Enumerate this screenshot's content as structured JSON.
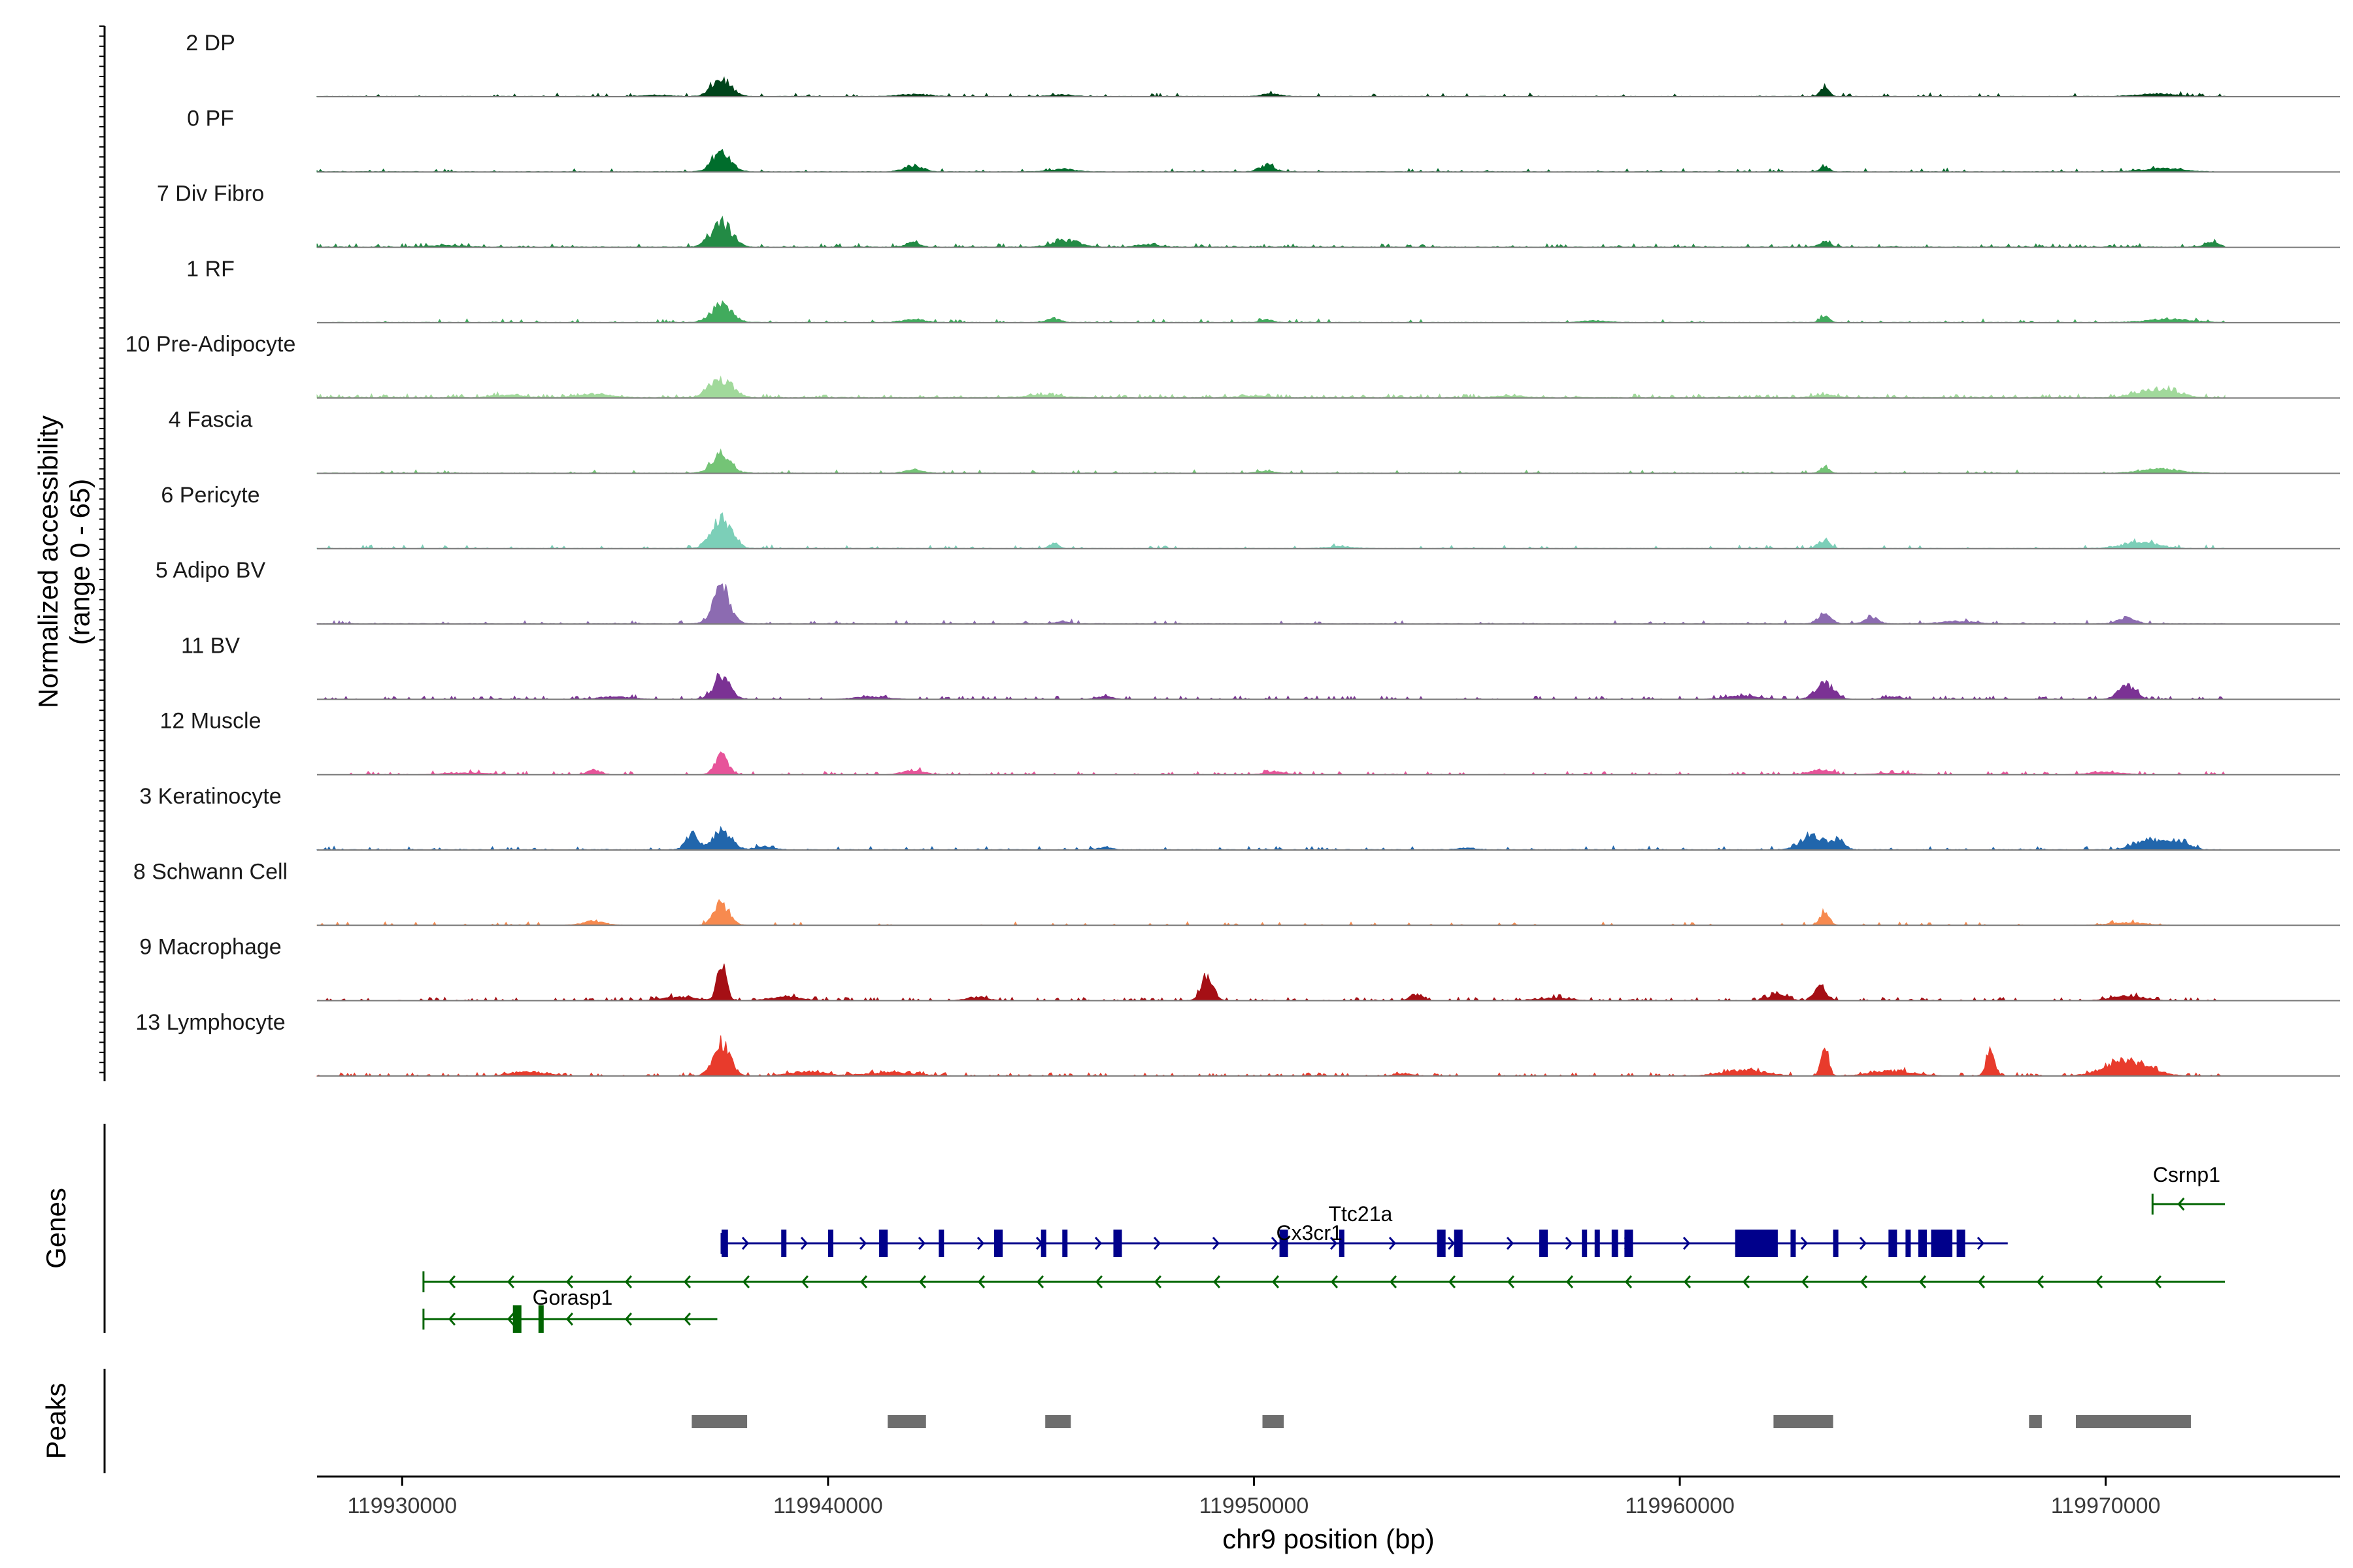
{
  "chart_data": {
    "type": "genome_track",
    "title": "",
    "xlabel": "chr9 position (bp)",
    "ylabel": "Normalized accessibility\n(range 0 - 65)",
    "xlim": [
      119928000,
      119975500
    ],
    "ylim": [
      0,
      65
    ],
    "x_ticks": [
      119930000,
      119940000,
      119950000,
      119960000,
      119970000
    ],
    "x_tick_labels": [
      "119930000",
      "119940000",
      "119950000",
      "119960000",
      "119970000"
    ],
    "data_start": 119928000,
    "data_end": 119972800,
    "tracks": [
      {
        "name": "2 DP",
        "color": "#00441b",
        "base": 0.5,
        "noise": 0.08,
        "peaks": [
          [
            119937500,
            20,
            220
          ],
          [
            119942000,
            2.5,
            350
          ],
          [
            119945500,
            2,
            250
          ],
          [
            119950400,
            3,
            200
          ],
          [
            119963400,
            10,
            100
          ],
          [
            119971200,
            3,
            450
          ],
          [
            119936000,
            1.5,
            300
          ]
        ]
      },
      {
        "name": "0 PF",
        "color": "#006d2c",
        "base": 0.5,
        "noise": 0.08,
        "peaks": [
          [
            119937500,
            22,
            220
          ],
          [
            119942000,
            7,
            220
          ],
          [
            119945500,
            3,
            300
          ],
          [
            119950300,
            8,
            170
          ],
          [
            119963400,
            7,
            100
          ],
          [
            119971300,
            4,
            450
          ]
        ]
      },
      {
        "name": "7 Div Fibro",
        "color": "#238b45",
        "base": 0.6,
        "noise": 0.2,
        "peaks": [
          [
            119937500,
            28,
            240
          ],
          [
            119942000,
            6,
            150
          ],
          [
            119945600,
            8,
            300
          ],
          [
            119947500,
            3,
            250
          ],
          [
            119963400,
            7,
            120
          ],
          [
            119972500,
            6,
            150
          ],
          [
            119931000,
            2,
            400
          ]
        ]
      },
      {
        "name": "1 RF",
        "color": "#41ab5d",
        "base": 0.5,
        "noise": 0.08,
        "peaks": [
          [
            119937500,
            20,
            240
          ],
          [
            119942000,
            4,
            250
          ],
          [
            119945300,
            5,
            150
          ],
          [
            119950300,
            3,
            150
          ],
          [
            119963400,
            8,
            100
          ],
          [
            119971500,
            4,
            500
          ],
          [
            119958000,
            2,
            300
          ]
        ]
      },
      {
        "name": "10 Pre-Adipocyte",
        "color": "#a1d99b",
        "base": 0.8,
        "noise": 0.25,
        "peaks": [
          [
            119937500,
            22,
            260
          ],
          [
            119934500,
            4,
            400
          ],
          [
            119932500,
            3,
            350
          ],
          [
            119945000,
            3,
            400
          ],
          [
            119950000,
            2,
            300
          ],
          [
            119963400,
            3,
            250
          ],
          [
            119971200,
            10,
            450
          ],
          [
            119956000,
            2,
            350
          ]
        ]
      },
      {
        "name": "4 Fascia",
        "color": "#74c476",
        "base": 0.5,
        "noise": 0.08,
        "peaks": [
          [
            119937500,
            22,
            220
          ],
          [
            119942000,
            4,
            200
          ],
          [
            119963400,
            8,
            100
          ],
          [
            119971300,
            5,
            450
          ],
          [
            119950300,
            2,
            200
          ]
        ]
      },
      {
        "name": "6 Pericyte",
        "color": "#7ccfb8",
        "base": 0.5,
        "noise": 0.1,
        "peaks": [
          [
            119937500,
            35,
            230
          ],
          [
            119945300,
            7,
            100
          ],
          [
            119963400,
            10,
            120
          ],
          [
            119970800,
            8,
            400
          ],
          [
            119952000,
            2,
            300
          ]
        ]
      },
      {
        "name": "5 Adipo BV",
        "color": "#8c6bb1",
        "base": 0.5,
        "noise": 0.1,
        "peaks": [
          [
            119937500,
            40,
            200
          ],
          [
            119963400,
            12,
            150
          ],
          [
            119964500,
            8,
            150
          ],
          [
            119970500,
            7,
            200
          ],
          [
            119945500,
            3,
            150
          ],
          [
            119966500,
            3,
            400
          ]
        ]
      },
      {
        "name": "11 BV",
        "color": "#7b3294",
        "base": 0.0,
        "noise": 0.2,
        "peaks": [
          [
            119937500,
            25,
            200
          ],
          [
            119963400,
            18,
            220
          ],
          [
            119970500,
            16,
            200
          ],
          [
            119935000,
            3,
            400
          ],
          [
            119941000,
            3,
            400
          ],
          [
            119946500,
            3,
            200
          ],
          [
            119961500,
            4,
            400
          ],
          [
            119965000,
            3,
            200
          ]
        ]
      },
      {
        "name": "12 Muscle",
        "color": "#e7549a",
        "base": 0.0,
        "noise": 0.2,
        "peaks": [
          [
            119937500,
            25,
            150
          ],
          [
            119934500,
            6,
            150
          ],
          [
            119942000,
            5,
            250
          ],
          [
            119931500,
            2,
            500
          ],
          [
            119950500,
            3,
            250
          ],
          [
            119963300,
            6,
            250
          ],
          [
            119970000,
            3,
            400
          ],
          [
            119965000,
            2,
            400
          ]
        ]
      },
      {
        "name": "3 Keratinocyte",
        "color": "#2166ac",
        "base": 0.6,
        "noise": 0.1,
        "peaks": [
          [
            119937500,
            22,
            220
          ],
          [
            119936800,
            18,
            140
          ],
          [
            119963100,
            18,
            250
          ],
          [
            119963700,
            12,
            150
          ],
          [
            119971000,
            12,
            300
          ],
          [
            119971700,
            10,
            250
          ],
          [
            119938500,
            4,
            200
          ],
          [
            119946500,
            3,
            150
          ],
          [
            119955000,
            2,
            200
          ]
        ]
      },
      {
        "name": "8 Schwann Cell",
        "color": "#f78a4f",
        "base": 0.2,
        "noise": 0.08,
        "peaks": [
          [
            119937500,
            25,
            180
          ],
          [
            119963400,
            15,
            110
          ],
          [
            119934500,
            5,
            250
          ],
          [
            119970500,
            3,
            400
          ]
        ]
      },
      {
        "name": "9 Macrophage",
        "color": "#a50f15",
        "base": 0.0,
        "noise": 0.25,
        "peaks": [
          [
            119937500,
            40,
            110
          ],
          [
            119948900,
            30,
            140
          ],
          [
            119963300,
            15,
            150
          ],
          [
            119962300,
            9,
            200
          ],
          [
            119936500,
            4,
            400
          ],
          [
            119939000,
            4,
            400
          ],
          [
            119943500,
            4,
            250
          ],
          [
            119953800,
            7,
            150
          ],
          [
            119970500,
            5,
            400
          ],
          [
            119957000,
            3,
            400
          ]
        ]
      },
      {
        "name": "13 Lymphocyte",
        "color": "#e83b2c",
        "base": 0.0,
        "noise": 0.25,
        "peaks": [
          [
            119937500,
            38,
            200
          ],
          [
            119963400,
            32,
            90
          ],
          [
            119967300,
            28,
            100
          ],
          [
            119970500,
            18,
            500
          ],
          [
            119933000,
            5,
            400
          ],
          [
            119939500,
            5,
            400
          ],
          [
            119941500,
            4,
            600
          ],
          [
            119961500,
            7,
            500
          ],
          [
            119965000,
            6,
            500
          ],
          [
            119953500,
            3,
            200
          ]
        ]
      }
    ],
    "gene_panel_label": "Genes",
    "genes": [
      {
        "name": "Csrnp1",
        "color": "#006400",
        "strand": "-",
        "start": 119971100,
        "end": 119972800,
        "row": 0,
        "exons": [],
        "label_x": 119971900
      },
      {
        "name": "Ttc21a",
        "color": "#00008b",
        "strand": "+",
        "start": 119937500,
        "end": 119967700,
        "row": 1,
        "label_x": 119952500,
        "exons": [
          [
            119937500,
            119937650,
            0
          ],
          [
            119938900,
            119939000,
            0
          ],
          [
            119940000,
            119940100,
            0
          ],
          [
            119941200,
            119941400,
            0
          ],
          [
            119942600,
            119942700,
            0
          ],
          [
            119943900,
            119944100,
            0
          ],
          [
            119945000,
            119945050,
            0
          ],
          [
            119945500,
            119945550,
            0
          ],
          [
            119946700,
            119946900,
            0
          ],
          [
            119950600,
            119950800,
            0
          ],
          [
            119952000,
            119952100,
            0
          ],
          [
            119954300,
            119954500,
            0
          ],
          [
            119954700,
            119954900,
            0
          ],
          [
            119956700,
            119956900,
            0
          ],
          [
            119957700,
            119957800,
            0
          ],
          [
            119958000,
            119958100,
            0
          ],
          [
            119958400,
            119958550,
            0
          ],
          [
            119958700,
            119958900,
            0
          ],
          [
            119961300,
            119962300,
            0
          ],
          [
            119962600,
            119962700,
            0
          ],
          [
            119963600,
            119963700,
            0
          ],
          [
            119964900,
            119965100,
            0
          ],
          [
            119965300,
            119965400,
            0
          ],
          [
            119965600,
            119965800,
            0
          ],
          [
            119965900,
            119966400,
            0
          ],
          [
            119966500,
            119966700,
            0
          ]
        ]
      },
      {
        "name": "Cx3cr1",
        "color": "#006400",
        "strand": "-",
        "start": 119930500,
        "end": 119972800,
        "row": 2,
        "exons": [],
        "label_x": 119951300,
        "label_dy": -30
      },
      {
        "name": "Gorasp1",
        "color": "#006400",
        "strand": "-",
        "start": 119930500,
        "end": 119937400,
        "row": 3,
        "label_x": 119934000,
        "label_dy": 12,
        "exons": [
          [
            119932600,
            119932800,
            1
          ],
          [
            119933200,
            119933250,
            0
          ]
        ]
      }
    ],
    "peaks_panel_label": "Peaks",
    "peaks": [
      [
        119936800,
        119938100
      ],
      [
        119941400,
        119942300
      ],
      [
        119945100,
        119945700
      ],
      [
        119950200,
        119950700
      ],
      [
        119962200,
        119963600
      ],
      [
        119968200,
        119968500
      ],
      [
        119969300,
        119972000
      ]
    ]
  }
}
